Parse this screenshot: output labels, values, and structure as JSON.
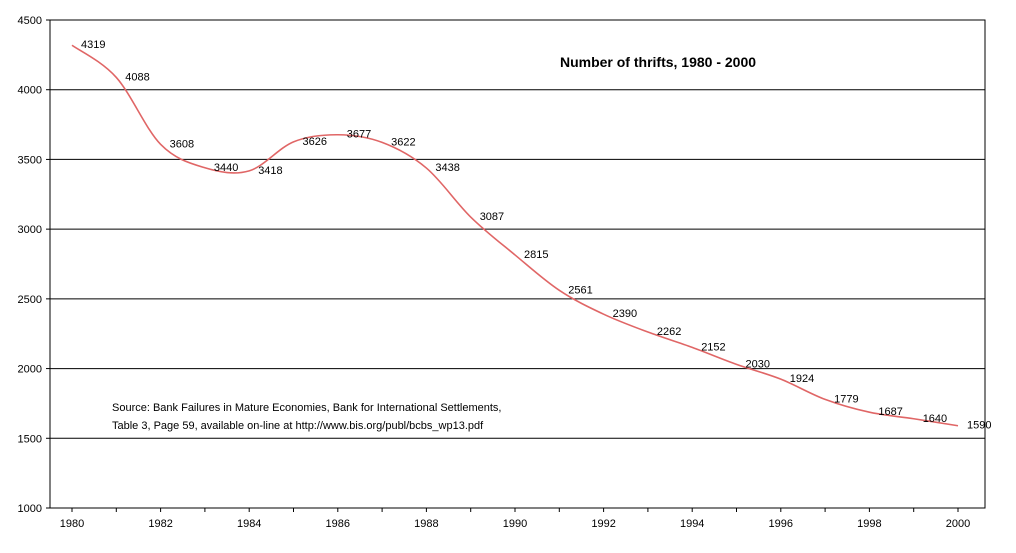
{
  "chart_data": {
    "type": "line",
    "title": "Number of thrifts, 1980 - 2000",
    "xlabel": "",
    "ylabel": "",
    "x": [
      1980,
      1981,
      1982,
      1983,
      1984,
      1985,
      1986,
      1987,
      1988,
      1989,
      1990,
      1991,
      1992,
      1993,
      1994,
      1995,
      1996,
      1997,
      1998,
      1999,
      2000
    ],
    "values": [
      4319,
      4088,
      3608,
      3440,
      3418,
      3626,
      3677,
      3622,
      3438,
      3087,
      2815,
      2561,
      2390,
      2262,
      2152,
      2030,
      1924,
      1779,
      1687,
      1640,
      1590
    ],
    "data_labels": [
      "4319",
      "4088",
      "3608",
      "3440",
      "3418",
      "3626",
      "3677",
      "3622",
      "3438",
      "3087",
      "2815",
      "2561",
      "2390",
      "2262",
      "2152",
      "2030",
      "1924",
      "1779",
      "1687",
      "1640",
      "1590"
    ],
    "xticks": [
      "1980",
      "1982",
      "1984",
      "1986",
      "1988",
      "1990",
      "1992",
      "1994",
      "1996",
      "1998",
      "2000"
    ],
    "yticks": [
      "1000",
      "1500",
      "2000",
      "2500",
      "3000",
      "3500",
      "4000",
      "4500"
    ],
    "ylim": [
      1000,
      4500
    ],
    "xlim": [
      1980,
      2000
    ],
    "grid": "horizontal",
    "legend": "none",
    "line_color": "#e06666",
    "source_note": [
      "Source: Bank Failures in Mature Economies, Bank for International Settlements,",
      "Table 3, Page 59, available on-line at http://www.bis.org/publ/bcbs_wp13.pdf"
    ]
  }
}
